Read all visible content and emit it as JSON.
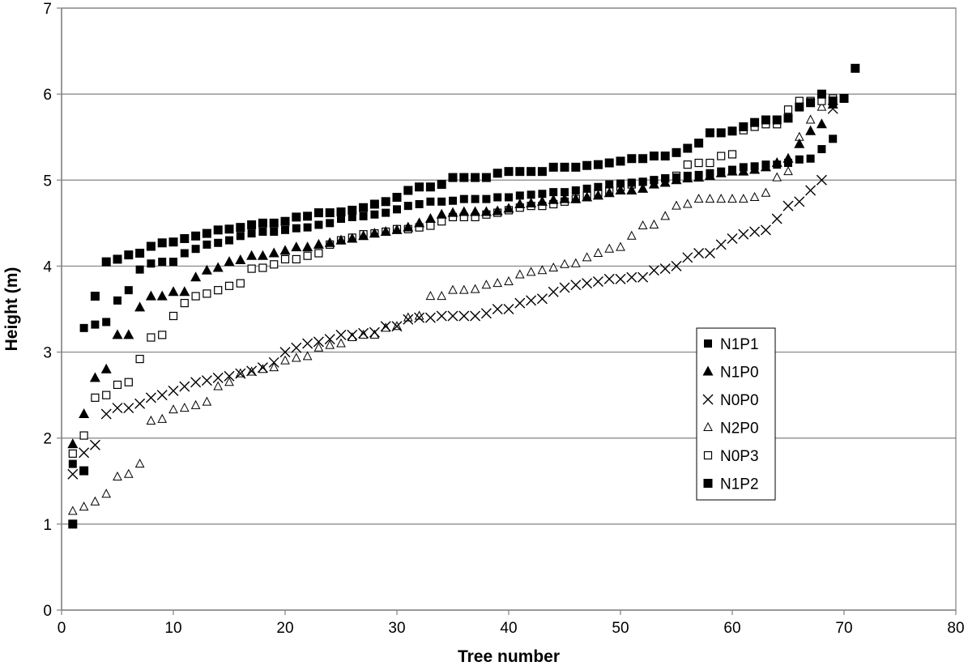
{
  "chart_data": {
    "type": "scatter",
    "title": "",
    "xlabel": "Tree number",
    "ylabel": "Height (m)",
    "xlim": [
      0,
      80
    ],
    "ylim": [
      0,
      7
    ],
    "xticks": [
      0,
      10,
      20,
      30,
      40,
      50,
      60,
      70,
      80
    ],
    "yticks": [
      0,
      1,
      2,
      3,
      4,
      5,
      6,
      7
    ],
    "grid": "horizontal",
    "legend_position": "right-middle",
    "series": [
      {
        "name": "N1P1",
        "marker": "square-filled-small",
        "color": "#000000",
        "x": [
          1,
          2,
          3,
          4,
          5,
          6,
          7,
          8,
          9,
          10,
          11,
          12,
          13,
          14,
          15,
          16,
          17,
          18,
          19,
          20,
          21,
          22,
          23,
          24,
          25,
          26,
          27,
          28,
          29,
          30,
          31,
          32,
          33,
          34,
          35,
          36,
          37,
          38,
          39,
          40,
          41,
          42,
          43,
          44,
          45,
          46,
          47,
          48,
          49,
          50,
          51,
          52,
          53,
          54,
          55,
          56,
          57,
          58,
          59,
          60,
          61,
          62,
          63,
          64,
          65,
          66,
          67,
          68,
          69
        ],
        "y": [
          1.7,
          3.28,
          3.32,
          3.35,
          3.6,
          3.72,
          3.96,
          4.03,
          4.05,
          4.05,
          4.15,
          4.2,
          4.25,
          4.27,
          4.3,
          4.35,
          4.38,
          4.4,
          4.4,
          4.42,
          4.44,
          4.45,
          4.48,
          4.5,
          4.55,
          4.57,
          4.58,
          4.6,
          4.62,
          4.66,
          4.7,
          4.72,
          4.75,
          4.75,
          4.76,
          4.78,
          4.78,
          4.78,
          4.8,
          4.8,
          4.82,
          4.83,
          4.84,
          4.86,
          4.86,
          4.88,
          4.9,
          4.92,
          4.95,
          4.96,
          4.97,
          4.98,
          5.0,
          5.02,
          5.03,
          5.05,
          5.06,
          5.08,
          5.1,
          5.12,
          5.15,
          5.16,
          5.18,
          5.18,
          5.2,
          5.24,
          5.25,
          5.36,
          5.48
        ]
      },
      {
        "name": "N1P0",
        "marker": "triangle-filled",
        "color": "#000000",
        "x": [
          1,
          2,
          3,
          4,
          5,
          6,
          7,
          8,
          9,
          10,
          11,
          12,
          13,
          14,
          15,
          16,
          17,
          18,
          19,
          20,
          21,
          22,
          23,
          24,
          25,
          26,
          27,
          28,
          29,
          30,
          31,
          32,
          33,
          34,
          35,
          36,
          37,
          38,
          39,
          40,
          41,
          42,
          43,
          44,
          45,
          46,
          47,
          48,
          49,
          50,
          51,
          52,
          53,
          54,
          55,
          56,
          57,
          58,
          59,
          60,
          61,
          62,
          63,
          64,
          65,
          66,
          67,
          68,
          69
        ],
        "y": [
          1.93,
          2.28,
          2.7,
          2.8,
          3.2,
          3.2,
          3.52,
          3.65,
          3.65,
          3.7,
          3.7,
          3.87,
          3.95,
          3.98,
          4.05,
          4.07,
          4.12,
          4.12,
          4.15,
          4.18,
          4.22,
          4.22,
          4.25,
          4.27,
          4.3,
          4.32,
          4.35,
          4.38,
          4.4,
          4.42,
          4.45,
          4.5,
          4.55,
          4.6,
          4.62,
          4.63,
          4.63,
          4.63,
          4.64,
          4.67,
          4.72,
          4.73,
          4.75,
          4.77,
          4.78,
          4.78,
          4.8,
          4.82,
          4.85,
          4.88,
          4.88,
          4.9,
          4.95,
          4.97,
          5.0,
          5.02,
          5.03,
          5.05,
          5.08,
          5.1,
          5.1,
          5.12,
          5.15,
          5.2,
          5.25,
          5.42,
          5.57,
          5.65,
          5.88
        ]
      },
      {
        "name": "N0P0",
        "marker": "x",
        "color": "#000000",
        "x": [
          1,
          2,
          3,
          4,
          5,
          6,
          7,
          8,
          9,
          10,
          11,
          12,
          13,
          14,
          15,
          16,
          17,
          18,
          19,
          20,
          21,
          22,
          23,
          24,
          25,
          26,
          27,
          28,
          29,
          30,
          31,
          32,
          33,
          34,
          35,
          36,
          37,
          38,
          39,
          40,
          41,
          42,
          43,
          44,
          45,
          46,
          47,
          48,
          49,
          50,
          51,
          52,
          53,
          54,
          55,
          56,
          57,
          58,
          59,
          60,
          61,
          62,
          63,
          64,
          65,
          66,
          67,
          68,
          69
        ],
        "y": [
          1.58,
          1.83,
          1.92,
          2.28,
          2.35,
          2.35,
          2.4,
          2.47,
          2.5,
          2.55,
          2.6,
          2.65,
          2.67,
          2.7,
          2.72,
          2.75,
          2.78,
          2.82,
          2.88,
          3.0,
          3.05,
          3.1,
          3.12,
          3.15,
          3.2,
          3.2,
          3.22,
          3.23,
          3.3,
          3.3,
          3.38,
          3.4,
          3.4,
          3.42,
          3.42,
          3.42,
          3.42,
          3.45,
          3.5,
          3.5,
          3.57,
          3.6,
          3.62,
          3.7,
          3.75,
          3.78,
          3.8,
          3.82,
          3.85,
          3.85,
          3.87,
          3.87,
          3.95,
          3.97,
          4.0,
          4.1,
          4.15,
          4.15,
          4.25,
          4.32,
          4.37,
          4.4,
          4.42,
          4.55,
          4.7,
          4.75,
          4.88,
          5.0,
          5.83
        ]
      },
      {
        "name": "N2P0",
        "marker": "triangle-open",
        "color": "#000000",
        "x": [
          1,
          2,
          3,
          4,
          5,
          6,
          7,
          8,
          9,
          10,
          11,
          12,
          13,
          14,
          15,
          16,
          17,
          18,
          19,
          20,
          21,
          22,
          23,
          24,
          25,
          26,
          27,
          28,
          29,
          30,
          31,
          32,
          33,
          34,
          35,
          36,
          37,
          38,
          39,
          40,
          41,
          42,
          43,
          44,
          45,
          46,
          47,
          48,
          49,
          50,
          51,
          52,
          53,
          54,
          55,
          56,
          57,
          58,
          59,
          60,
          61,
          62,
          63,
          64,
          65,
          66,
          67,
          68,
          69
        ],
        "y": [
          1.15,
          1.2,
          1.26,
          1.35,
          1.55,
          1.58,
          1.7,
          2.2,
          2.22,
          2.33,
          2.35,
          2.38,
          2.42,
          2.6,
          2.65,
          2.75,
          2.77,
          2.8,
          2.82,
          2.9,
          2.93,
          2.95,
          3.05,
          3.08,
          3.1,
          3.17,
          3.2,
          3.2,
          3.28,
          3.3,
          3.4,
          3.42,
          3.65,
          3.65,
          3.72,
          3.72,
          3.73,
          3.78,
          3.8,
          3.82,
          3.9,
          3.93,
          3.95,
          3.98,
          4.02,
          4.03,
          4.1,
          4.15,
          4.2,
          4.22,
          4.35,
          4.47,
          4.48,
          4.58,
          4.7,
          4.72,
          4.78,
          4.78,
          4.78,
          4.78,
          4.78,
          4.8,
          4.85,
          5.03,
          5.1,
          5.5,
          5.7,
          5.85,
          5.92
        ]
      },
      {
        "name": "N0P3",
        "marker": "square-open",
        "color": "#000000",
        "x": [
          1,
          2,
          3,
          4,
          5,
          6,
          7,
          8,
          9,
          10,
          11,
          12,
          13,
          14,
          15,
          16,
          17,
          18,
          19,
          20,
          21,
          22,
          23,
          24,
          25,
          26,
          27,
          28,
          29,
          30,
          31,
          32,
          33,
          34,
          35,
          36,
          37,
          38,
          39,
          40,
          41,
          42,
          43,
          44,
          45,
          46,
          47,
          48,
          49,
          50,
          51,
          52,
          53,
          54,
          55,
          56,
          57,
          58,
          59,
          60,
          61,
          62,
          63,
          64,
          65,
          66,
          67,
          68,
          69
        ],
        "y": [
          1.82,
          2.03,
          2.47,
          2.5,
          2.62,
          2.65,
          2.92,
          3.17,
          3.2,
          3.42,
          3.57,
          3.65,
          3.68,
          3.72,
          3.77,
          3.8,
          3.97,
          3.98,
          4.02,
          4.08,
          4.08,
          4.12,
          4.15,
          4.25,
          4.3,
          4.33,
          4.37,
          4.38,
          4.4,
          4.43,
          4.43,
          4.45,
          4.47,
          4.52,
          4.57,
          4.57,
          4.57,
          4.6,
          4.62,
          4.65,
          4.68,
          4.7,
          4.7,
          4.72,
          4.75,
          4.78,
          4.82,
          4.85,
          4.88,
          4.92,
          4.95,
          4.98,
          5.0,
          5.02,
          5.05,
          5.18,
          5.2,
          5.2,
          5.28,
          5.3,
          5.58,
          5.62,
          5.65,
          5.65,
          5.82,
          5.92,
          5.92,
          5.92,
          5.95
        ]
      },
      {
        "name": "N1P2",
        "marker": "square-filled",
        "color": "#000000",
        "x": [
          1,
          2,
          3,
          4,
          5,
          6,
          7,
          8,
          9,
          10,
          11,
          12,
          13,
          14,
          15,
          16,
          17,
          18,
          19,
          20,
          21,
          22,
          23,
          24,
          25,
          26,
          27,
          28,
          29,
          30,
          31,
          32,
          33,
          34,
          35,
          36,
          37,
          38,
          39,
          40,
          41,
          42,
          43,
          44,
          45,
          46,
          47,
          48,
          49,
          50,
          51,
          52,
          53,
          54,
          55,
          56,
          57,
          58,
          59,
          60,
          61,
          62,
          63,
          64,
          65,
          66,
          67,
          68,
          69,
          70,
          71
        ],
        "y": [
          1.0,
          1.62,
          3.65,
          4.05,
          4.08,
          4.13,
          4.15,
          4.23,
          4.27,
          4.28,
          4.32,
          4.35,
          4.38,
          4.42,
          4.43,
          4.45,
          4.48,
          4.5,
          4.5,
          4.52,
          4.57,
          4.58,
          4.62,
          4.62,
          4.63,
          4.65,
          4.68,
          4.72,
          4.75,
          4.8,
          4.88,
          4.92,
          4.92,
          4.95,
          5.03,
          5.03,
          5.03,
          5.03,
          5.08,
          5.1,
          5.1,
          5.1,
          5.1,
          5.15,
          5.15,
          5.15,
          5.17,
          5.18,
          5.2,
          5.22,
          5.25,
          5.25,
          5.28,
          5.28,
          5.32,
          5.37,
          5.43,
          5.55,
          5.55,
          5.57,
          5.62,
          5.67,
          5.7,
          5.7,
          5.72,
          5.85,
          5.9,
          6.0,
          5.92,
          5.95,
          6.3
        ]
      }
    ]
  }
}
